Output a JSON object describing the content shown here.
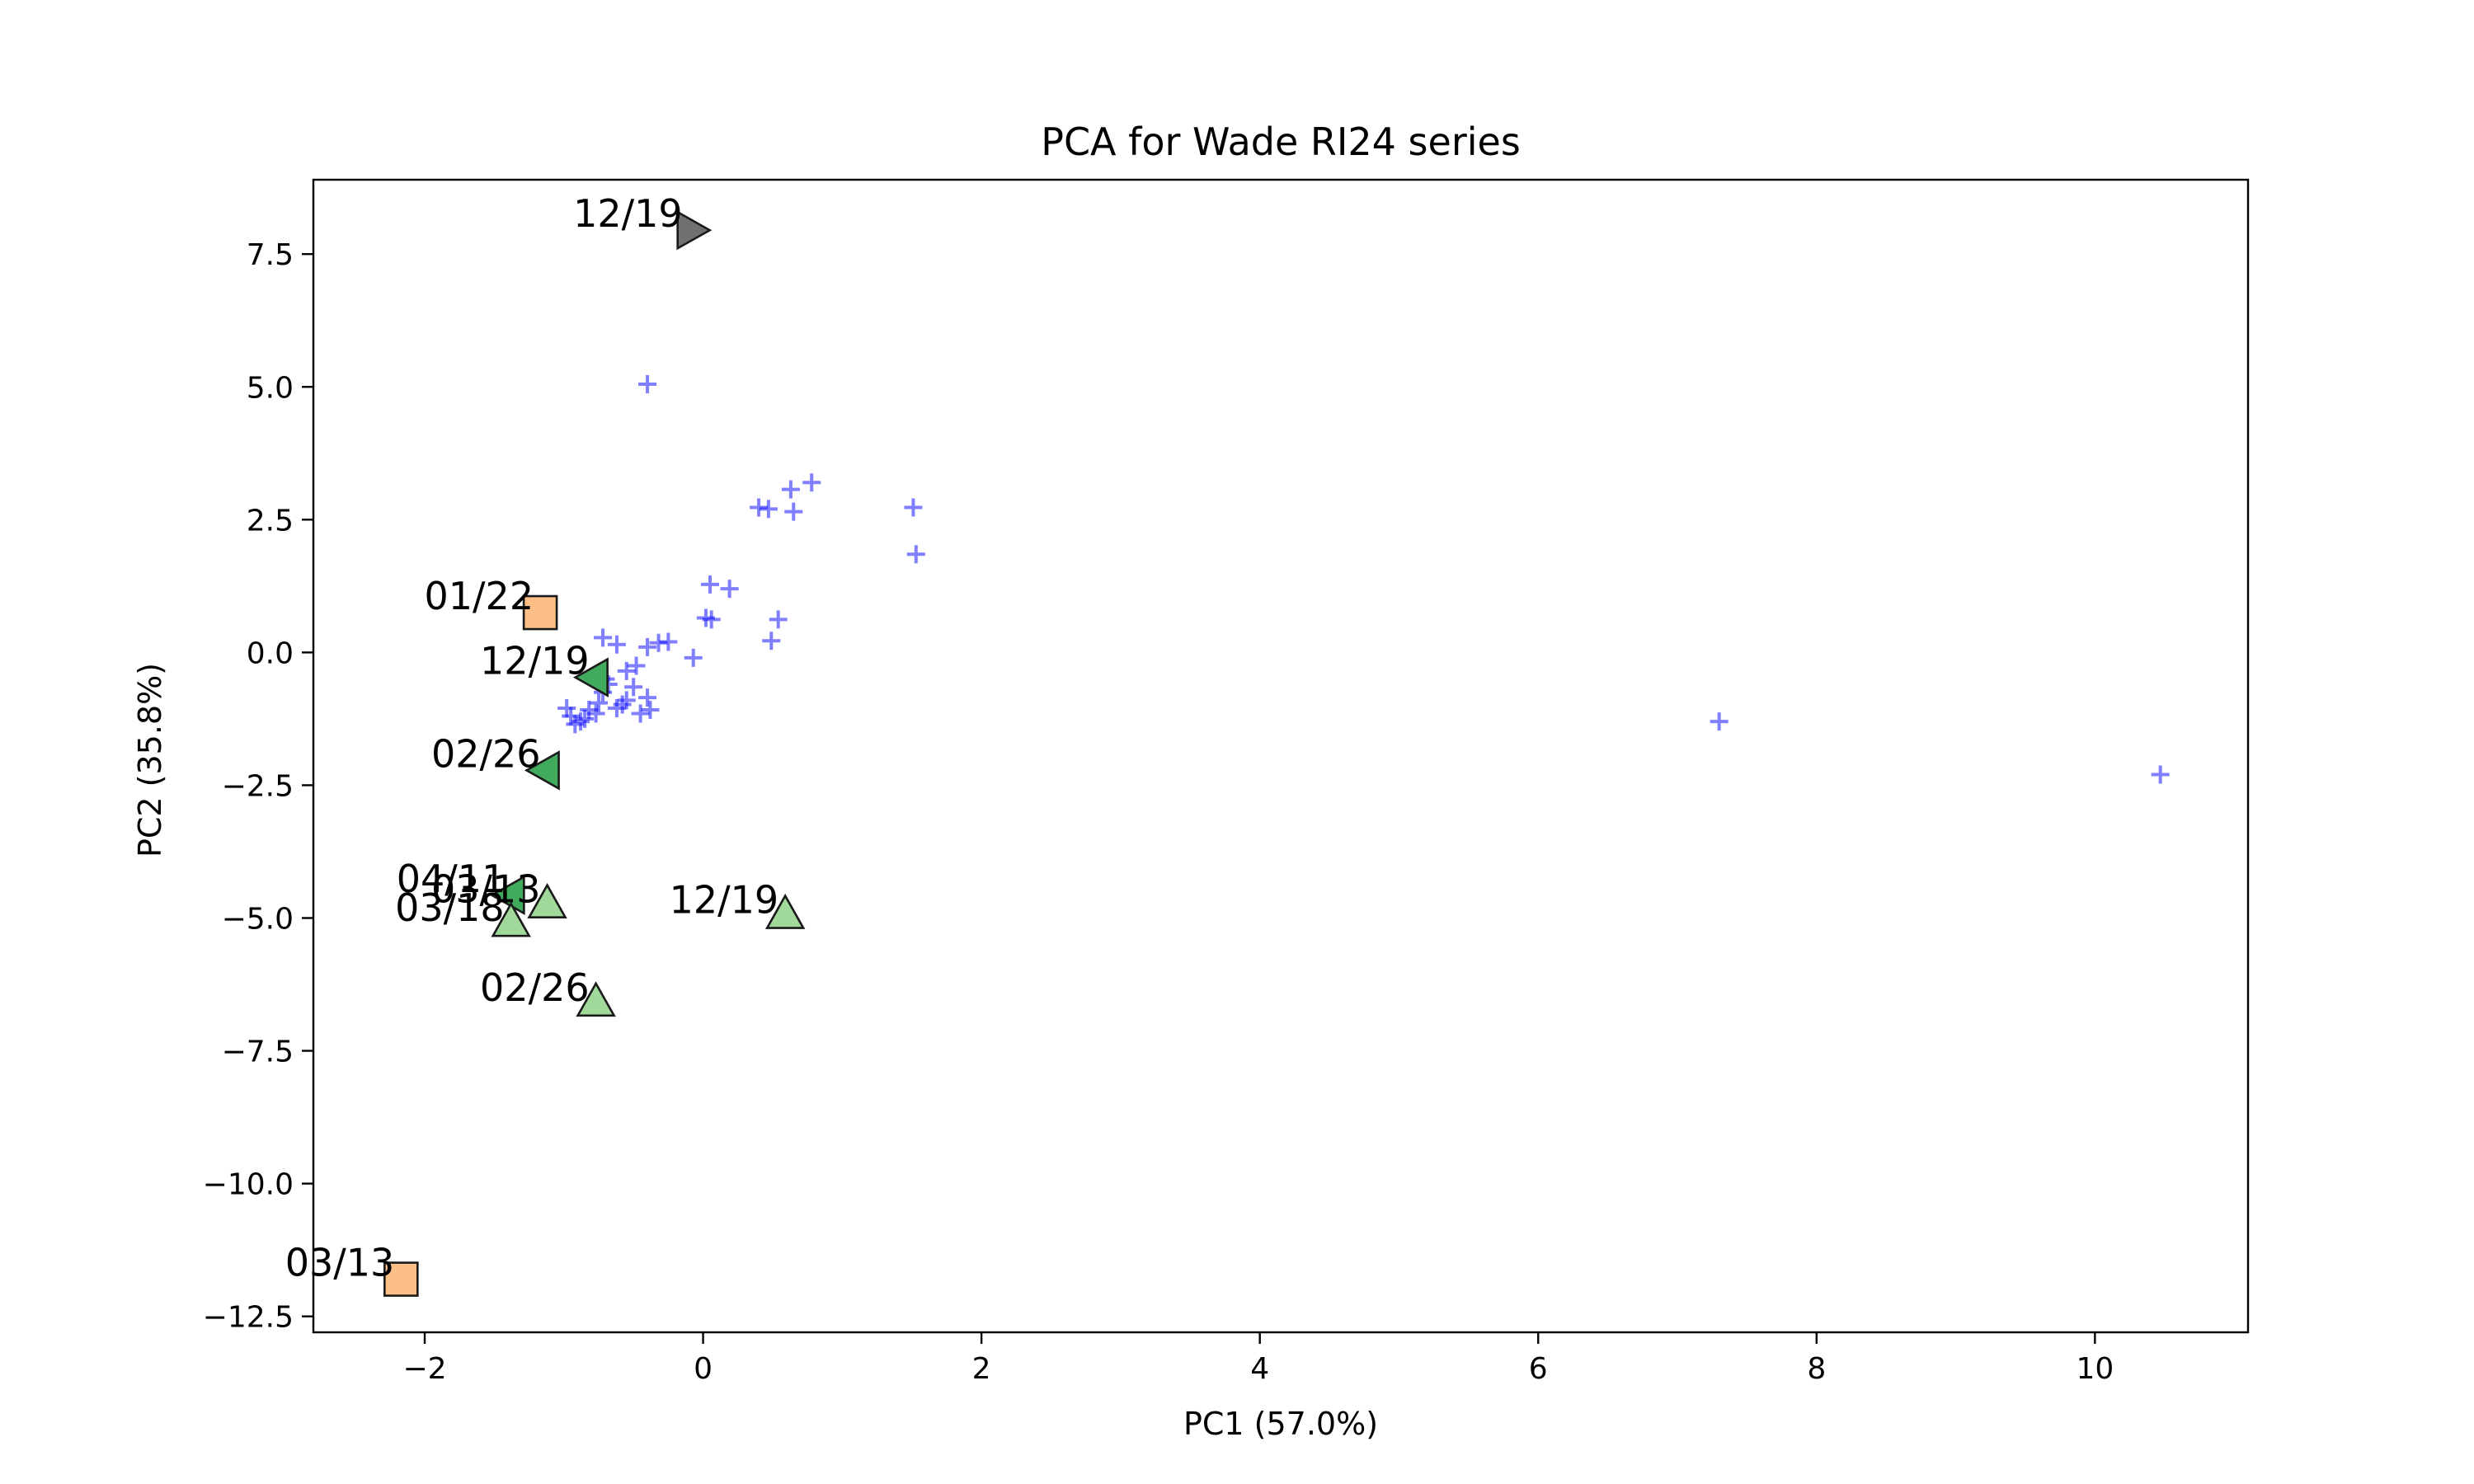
{
  "chart_data": {
    "type": "scatter",
    "title": "PCA for Wade RI24 series",
    "xlabel": "PC1 (57.0%)",
    "ylabel": "PC2 (35.8%)",
    "xlim": [
      -2.8,
      11.1
    ],
    "ylim": [
      -12.8,
      8.9
    ],
    "xticks": [
      -2,
      0,
      2,
      4,
      6,
      8,
      10
    ],
    "xtick_labels": [
      "−2",
      "0",
      "2",
      "4",
      "6",
      "8",
      "10"
    ],
    "yticks": [
      7.5,
      5.0,
      2.5,
      0.0,
      -2.5,
      -5.0,
      -7.5,
      -10.0,
      -12.5
    ],
    "ytick_labels": [
      "7.5",
      "5.0",
      "2.5",
      "0.0",
      "−2.5",
      "−5.0",
      "−7.5",
      "−10.0",
      "−12.5"
    ],
    "grid": false,
    "legend": "none",
    "background_points": {
      "marker": "plus",
      "color": "#0000ff",
      "opacity": 0.5,
      "x": [
        -0.4,
        0.4,
        0.47,
        0.63,
        0.65,
        0.78,
        1.51,
        1.53,
        0.05,
        0.19,
        0.02,
        0.06,
        0.54,
        0.49,
        -0.07,
        -0.25,
        -0.32,
        -0.4,
        -0.48,
        -0.55,
        -0.62,
        -0.72,
        -0.7,
        -0.5,
        -0.4,
        -0.55,
        -0.62,
        -0.77,
        -0.85,
        -0.95,
        -0.82,
        -0.72,
        -0.58,
        -0.45,
        -0.38,
        -0.88,
        -0.92,
        -0.98,
        -0.75,
        -0.68,
        7.3,
        10.47
      ],
      "y": [
        5.05,
        2.73,
        2.7,
        3.07,
        2.65,
        3.2,
        2.73,
        1.85,
        1.28,
        1.2,
        0.65,
        0.62,
        0.62,
        0.22,
        -0.1,
        0.2,
        0.18,
        0.1,
        -0.25,
        -0.35,
        0.15,
        0.28,
        -0.5,
        -0.65,
        -0.85,
        -0.9,
        -1.05,
        -1.15,
        -1.25,
        -1.2,
        -1.08,
        -0.75,
        -0.98,
        -1.15,
        -1.08,
        -1.3,
        -1.35,
        -1.05,
        -0.95,
        -0.6,
        -1.3,
        -2.3
      ]
    },
    "labeled_points": [
      {
        "label": "12/19",
        "x": -0.1,
        "y": 7.95,
        "marker": "triangle-right",
        "color": "#707070"
      },
      {
        "label": "01/22",
        "x": -1.17,
        "y": 0.75,
        "marker": "square",
        "color": "#fdbf86"
      },
      {
        "label": "12/19",
        "x": -0.77,
        "y": -0.47,
        "marker": "triangle-left",
        "color": "#41ab5d"
      },
      {
        "label": "02/26",
        "x": -1.12,
        "y": -2.22,
        "marker": "triangle-left",
        "color": "#41ab5d"
      },
      {
        "label": "04/11",
        "x": -1.37,
        "y": -4.57,
        "marker": "triangle-left",
        "color": "#41ab5d"
      },
      {
        "label": "03/13",
        "x": -1.12,
        "y": -4.77,
        "marker": "triangle-up",
        "color": "#a1d99b"
      },
      {
        "label": "03/18",
        "x": -1.38,
        "y": -5.12,
        "marker": "triangle-up",
        "color": "#a1d99b"
      },
      {
        "label": "12/19",
        "x": 0.59,
        "y": -4.97,
        "marker": "triangle-up",
        "color": "#a1d99b"
      },
      {
        "label": "02/26",
        "x": -0.77,
        "y": -6.62,
        "marker": "triangle-up",
        "color": "#a1d99b"
      },
      {
        "label": "03/13",
        "x": -2.17,
        "y": -11.8,
        "marker": "square",
        "color": "#fdbf86"
      }
    ]
  }
}
